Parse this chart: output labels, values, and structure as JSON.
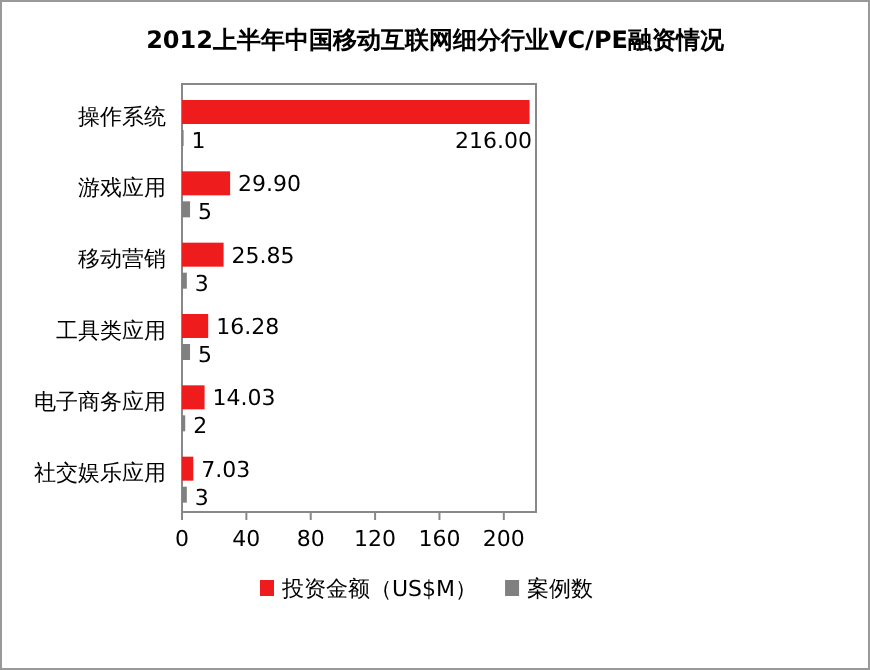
{
  "chart_data": {
    "type": "bar",
    "orientation": "horizontal",
    "title": "2012上半年中国移动互联网细分行业VC/PE融资情况",
    "categories": [
      "操作系统",
      "游戏应用",
      "移动营销",
      "工具类应用",
      "电子商务应用",
      "社交娱乐应用"
    ],
    "series": [
      {
        "name": "投资金额（US$M）",
        "color": "#ee1c1c",
        "values": [
          216.0,
          29.9,
          25.85,
          16.28,
          14.03,
          7.03
        ],
        "value_labels": [
          "216.00",
          "29.90",
          "25.85",
          "16.28",
          "14.03",
          "7.03"
        ]
      },
      {
        "name": "案例数",
        "color": "#808080",
        "values": [
          1,
          5,
          3,
          5,
          2,
          3
        ],
        "value_labels": [
          "1",
          "5",
          "3",
          "5",
          "2",
          "3"
        ]
      }
    ],
    "xlim": [
      0,
      220
    ],
    "xticks": [
      0,
      40,
      80,
      120,
      160,
      200
    ],
    "legend": "bottom",
    "grid": false
  }
}
